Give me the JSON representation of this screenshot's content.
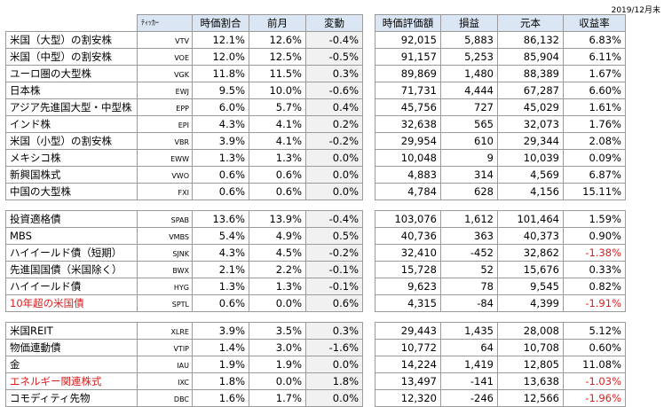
{
  "date_label": "2019/12月末",
  "headers": {
    "ticker": "ﾃｨｯｶｰ",
    "ratio": "時価割合",
    "prev": "前月",
    "change": "変動",
    "value": "時価評価額",
    "gain": "損益",
    "cost": "元本",
    "yield": "収益率"
  },
  "colors": {
    "header_bg": "#dbe6f4",
    "negative": "#d62020",
    "change_bg": "#f1f1f1"
  },
  "groups": [
    {
      "rows": [
        {
          "name": "米国（大型）の割安株",
          "ticker": "VTV",
          "ratio": "12.1%",
          "prev": "12.6%",
          "change": "-0.4%",
          "value": "92,015",
          "gain": "5,883",
          "cost": "86,132",
          "yield": "6.83%",
          "red_name": false,
          "red_yield": false
        },
        {
          "name": "米国（中型）の割安株",
          "ticker": "VOE",
          "ratio": "12.0%",
          "prev": "12.5%",
          "change": "-0.5%",
          "value": "91,157",
          "gain": "5,253",
          "cost": "85,904",
          "yield": "6.11%",
          "red_name": false,
          "red_yield": false
        },
        {
          "name": "ユーロ圏の大型株",
          "ticker": "VGK",
          "ratio": "11.8%",
          "prev": "11.5%",
          "change": "0.3%",
          "value": "89,869",
          "gain": "1,480",
          "cost": "88,389",
          "yield": "1.67%",
          "red_name": false,
          "red_yield": false
        },
        {
          "name": "日本株",
          "ticker": "EWJ",
          "ratio": "9.5%",
          "prev": "10.0%",
          "change": "-0.6%",
          "value": "71,731",
          "gain": "4,444",
          "cost": "67,287",
          "yield": "6.60%",
          "red_name": false,
          "red_yield": false
        },
        {
          "name": "アジア先進国大型・中型株",
          "ticker": "EPP",
          "ratio": "6.0%",
          "prev": "5.7%",
          "change": "0.4%",
          "value": "45,756",
          "gain": "727",
          "cost": "45,029",
          "yield": "1.61%",
          "red_name": false,
          "red_yield": false
        },
        {
          "name": "インド株",
          "ticker": "EPI",
          "ratio": "4.3%",
          "prev": "4.1%",
          "change": "0.2%",
          "value": "32,638",
          "gain": "565",
          "cost": "32,073",
          "yield": "1.76%",
          "red_name": false,
          "red_yield": false
        },
        {
          "name": "米国（小型）の割安株",
          "ticker": "VBR",
          "ratio": "3.9%",
          "prev": "4.1%",
          "change": "-0.2%",
          "value": "29,954",
          "gain": "610",
          "cost": "29,344",
          "yield": "2.08%",
          "red_name": false,
          "red_yield": false
        },
        {
          "name": "メキシコ株",
          "ticker": "EWW",
          "ratio": "1.3%",
          "prev": "1.3%",
          "change": "0.0%",
          "value": "10,048",
          "gain": "9",
          "cost": "10,039",
          "yield": "0.09%",
          "red_name": false,
          "red_yield": false
        },
        {
          "name": "新興国株式",
          "ticker": "VWO",
          "ratio": "0.6%",
          "prev": "0.6%",
          "change": "0.0%",
          "value": "4,883",
          "gain": "314",
          "cost": "4,569",
          "yield": "6.87%",
          "red_name": false,
          "red_yield": false
        },
        {
          "name": "中国の大型株",
          "ticker": "FXI",
          "ratio": "0.6%",
          "prev": "0.6%",
          "change": "0.0%",
          "value": "4,784",
          "gain": "628",
          "cost": "4,156",
          "yield": "15.11%",
          "red_name": false,
          "red_yield": false
        }
      ]
    },
    {
      "rows": [
        {
          "name": "投資適格債",
          "ticker": "SPAB",
          "ratio": "13.6%",
          "prev": "13.9%",
          "change": "-0.4%",
          "value": "103,076",
          "gain": "1,612",
          "cost": "101,464",
          "yield": "1.59%",
          "red_name": false,
          "red_yield": false
        },
        {
          "name": "MBS",
          "ticker": "VMBS",
          "ratio": "5.4%",
          "prev": "4.9%",
          "change": "0.5%",
          "value": "40,736",
          "gain": "363",
          "cost": "40,373",
          "yield": "0.90%",
          "red_name": false,
          "red_yield": false
        },
        {
          "name": "ハイイールド債（短期）",
          "ticker": "SJNK",
          "ratio": "4.3%",
          "prev": "4.5%",
          "change": "-0.2%",
          "value": "32,410",
          "gain": "-452",
          "cost": "32,862",
          "yield": "-1.38%",
          "red_name": false,
          "red_yield": true
        },
        {
          "name": "先進国国債（米国除く）",
          "ticker": "BWX",
          "ratio": "2.1%",
          "prev": "2.2%",
          "change": "-0.1%",
          "value": "15,728",
          "gain": "52",
          "cost": "15,676",
          "yield": "0.33%",
          "red_name": false,
          "red_yield": false
        },
        {
          "name": "ハイイールド債",
          "ticker": "HYG",
          "ratio": "1.3%",
          "prev": "1.3%",
          "change": "-0.1%",
          "value": "9,623",
          "gain": "78",
          "cost": "9,545",
          "yield": "0.82%",
          "red_name": false,
          "red_yield": false
        },
        {
          "name": "10年超の米国債",
          "ticker": "SPTL",
          "ratio": "0.6%",
          "prev": "0.0%",
          "change": "0.6%",
          "value": "4,315",
          "gain": "-84",
          "cost": "4,399",
          "yield": "-1.91%",
          "red_name": true,
          "red_yield": true
        }
      ]
    },
    {
      "rows": [
        {
          "name": "米国REIT",
          "ticker": "XLRE",
          "ratio": "3.9%",
          "prev": "3.5%",
          "change": "0.3%",
          "value": "29,443",
          "gain": "1,435",
          "cost": "28,008",
          "yield": "5.12%",
          "red_name": false,
          "red_yield": false
        },
        {
          "name": "物価連動債",
          "ticker": "VTIP",
          "ratio": "1.4%",
          "prev": "3.0%",
          "change": "-1.6%",
          "value": "10,772",
          "gain": "64",
          "cost": "10,708",
          "yield": "0.60%",
          "red_name": false,
          "red_yield": false
        },
        {
          "name": "金",
          "ticker": "IAU",
          "ratio": "1.9%",
          "prev": "1.9%",
          "change": "0.0%",
          "value": "14,224",
          "gain": "1,419",
          "cost": "12,805",
          "yield": "11.08%",
          "red_name": false,
          "red_yield": false
        },
        {
          "name": "エネルギー関連株式",
          "ticker": "IXC",
          "ratio": "1.8%",
          "prev": "0.0%",
          "change": "1.8%",
          "value": "13,497",
          "gain": "-141",
          "cost": "13,638",
          "yield": "-1.03%",
          "red_name": true,
          "red_yield": true
        },
        {
          "name": "コモディティ先物",
          "ticker": "DBC",
          "ratio": "1.6%",
          "prev": "1.7%",
          "change": "0.0%",
          "value": "12,320",
          "gain": "-246",
          "cost": "12,566",
          "yield": "-1.96%",
          "red_name": false,
          "red_yield": true
        }
      ]
    }
  ]
}
